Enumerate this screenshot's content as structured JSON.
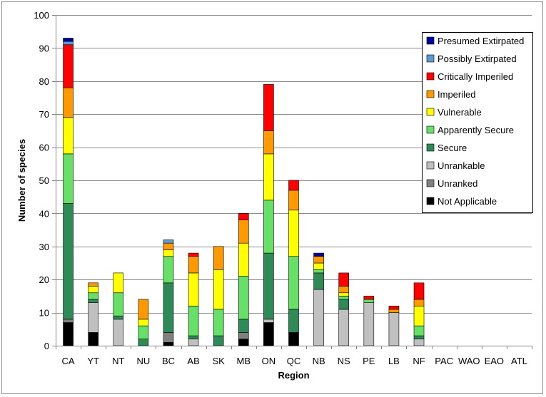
{
  "chart_data": {
    "type": "bar",
    "stacked": true,
    "xlabel": "Region",
    "ylabel": "Number of species",
    "ylim": [
      0,
      100
    ],
    "yticks": [
      0,
      10,
      20,
      30,
      40,
      50,
      60,
      70,
      80,
      90,
      100
    ],
    "grid": true,
    "legend_position": "top-right",
    "categories": [
      "CA",
      "YT",
      "NT",
      "NU",
      "BC",
      "AB",
      "SK",
      "MB",
      "ON",
      "QC",
      "NB",
      "NS",
      "PE",
      "LB",
      "NF",
      "PAC",
      "WAO",
      "EAO",
      "ATL"
    ],
    "series": [
      {
        "name": "Not Applicable",
        "color": "#000000",
        "values": [
          7,
          4,
          0,
          0,
          1,
          0,
          0,
          2,
          7,
          4,
          0,
          0,
          0,
          0,
          0,
          0,
          0,
          0,
          0
        ]
      },
      {
        "name": "Unranked",
        "color": "#808080",
        "values": [
          1,
          0,
          0,
          0,
          3,
          0,
          0,
          2,
          0,
          0,
          0,
          0,
          0,
          0,
          0,
          0,
          0,
          0,
          0
        ]
      },
      {
        "name": "Unrankable",
        "color": "#c0c0c0",
        "values": [
          0,
          9,
          8,
          0,
          0,
          2,
          0,
          0,
          1,
          0,
          17,
          11,
          13,
          10,
          2,
          0,
          0,
          0,
          0
        ]
      },
      {
        "name": "Secure",
        "color": "#2e8b57",
        "values": [
          35,
          1,
          1,
          2,
          15,
          1,
          3,
          4,
          20,
          7,
          5,
          3,
          0,
          0,
          1,
          0,
          0,
          0,
          0
        ]
      },
      {
        "name": "Apparently Secure",
        "color": "#66e066",
        "values": [
          15,
          2,
          7,
          4,
          8,
          9,
          8,
          13,
          16,
          16,
          1,
          1,
          1,
          0,
          3,
          0,
          0,
          0,
          0
        ]
      },
      {
        "name": "Vulnerable",
        "color": "#ffff00",
        "values": [
          11,
          2,
          6,
          2,
          2,
          10,
          12,
          10,
          14,
          14,
          2,
          1,
          0,
          0,
          6,
          0,
          0,
          0,
          0
        ]
      },
      {
        "name": "Imperiled",
        "color": "#ff9900",
        "values": [
          9,
          1,
          0,
          6,
          2,
          5,
          7,
          7,
          7,
          6,
          2,
          2,
          0,
          1,
          2,
          0,
          0,
          0,
          0
        ]
      },
      {
        "name": "Critically Imperiled",
        "color": "#ff0000",
        "values": [
          13,
          0,
          0,
          0,
          0,
          1,
          0,
          2,
          14,
          3,
          0,
          4,
          1,
          1,
          5,
          0,
          0,
          0,
          0
        ]
      },
      {
        "name": "Possibly Extirpated",
        "color": "#5b9bd5",
        "values": [
          1,
          0,
          0,
          0,
          1,
          0,
          0,
          0,
          0,
          0,
          0,
          0,
          0,
          0,
          0,
          0,
          0,
          0,
          0
        ]
      },
      {
        "name": "Presumed Extirpated",
        "color": "#0000a0",
        "values": [
          1,
          0,
          0,
          0,
          0,
          0,
          0,
          0,
          0,
          0,
          1,
          0,
          0,
          0,
          0,
          0,
          0,
          0,
          0
        ]
      }
    ]
  }
}
